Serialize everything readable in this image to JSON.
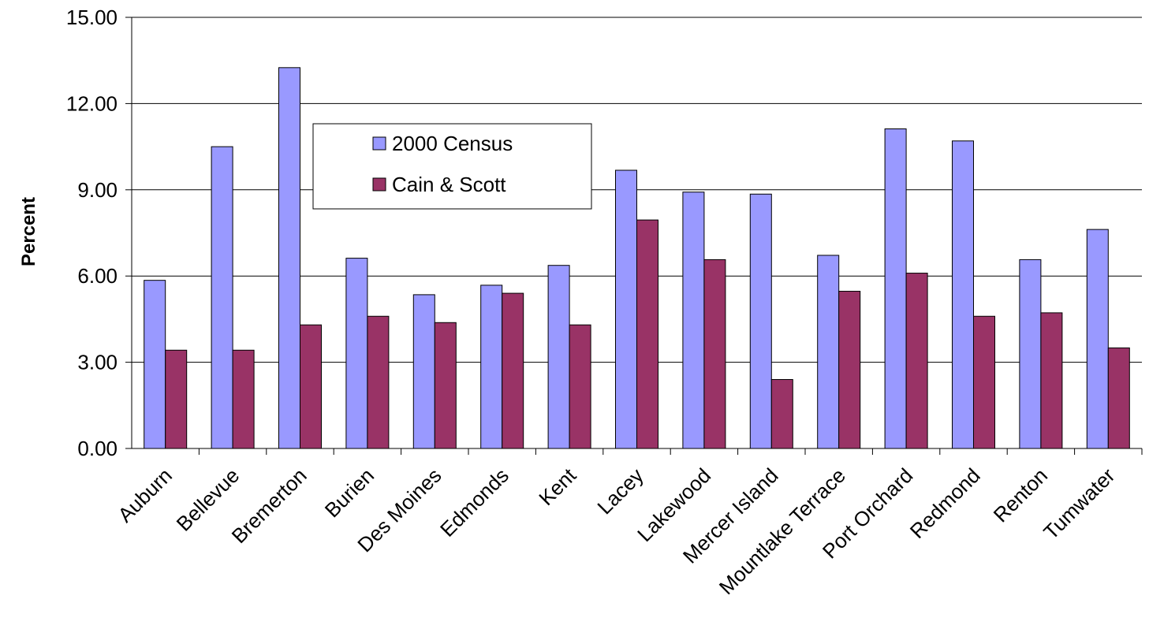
{
  "chart_data": {
    "type": "bar",
    "title": "",
    "xlabel": "",
    "ylabel": "Percent",
    "ylim": [
      0,
      15
    ],
    "yticks": [
      "0.00",
      "3.00",
      "6.00",
      "9.00",
      "12.00",
      "15.00"
    ],
    "grid": true,
    "legend_position": "top-left inside plot",
    "categories": [
      "Auburn",
      "Bellevue",
      "Bremerton",
      "Burien",
      "Des Moines",
      "Edmonds",
      "Kent",
      "Lacey",
      "Lakewood",
      "Mercer Island",
      "Mountlake Terrace",
      "Port Orchard",
      "Redmond",
      "Renton",
      "Tumwater"
    ],
    "series": [
      {
        "name": "2000 Census",
        "color": "#9999ff",
        "values": [
          5.85,
          10.5,
          13.25,
          6.62,
          5.35,
          5.68,
          6.37,
          9.68,
          8.92,
          8.85,
          6.72,
          11.12,
          10.7,
          6.57,
          7.62
        ]
      },
      {
        "name": "Cain & Scott",
        "color": "#993366",
        "values": [
          3.42,
          3.42,
          4.3,
          4.6,
          4.38,
          5.4,
          4.3,
          7.95,
          6.57,
          2.4,
          5.47,
          6.1,
          4.6,
          4.72,
          3.5
        ]
      }
    ]
  }
}
